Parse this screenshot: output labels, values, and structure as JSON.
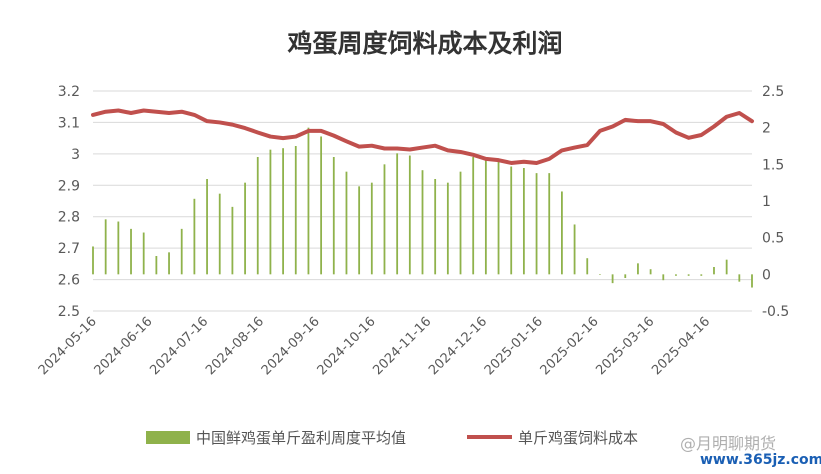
{
  "chart_data": {
    "type": "bar+line",
    "title": "鸡蛋周度饲料成本及利润",
    "left_axis": {
      "range": [
        2.5,
        3.2
      ],
      "ticks": [
        "2.5",
        "2.6",
        "2.7",
        "2.8",
        "2.9",
        "3",
        "3.1",
        "3.2"
      ]
    },
    "right_axis": {
      "range": [
        -0.5,
        2.5
      ],
      "ticks": [
        "-0.5",
        "0",
        "0.5",
        "1",
        "1.5",
        "2",
        "2.5"
      ]
    },
    "x_tick_labels": [
      "2024-05-16",
      "2024-06-16",
      "2024-07-16",
      "2024-08-16",
      "2024-09-16",
      "2024-10-16",
      "2024-11-16",
      "2024-12-16",
      "2025-01-16",
      "2025-02-16",
      "2025-03-16",
      "2025-04-16"
    ],
    "grid": "horizontal",
    "legend_placement": "bottom",
    "series": [
      {
        "name": "中国鲜鸡蛋单斤盈利周度平均值",
        "type": "bar",
        "axis": "right",
        "color": "#8FB24B",
        "values": [
          0.38,
          0.75,
          0.72,
          0.62,
          0.57,
          0.25,
          0.3,
          0.62,
          1.03,
          1.3,
          1.1,
          0.92,
          1.25,
          1.6,
          1.7,
          1.72,
          1.75,
          2.0,
          1.88,
          1.6,
          1.4,
          1.2,
          1.25,
          1.5,
          1.65,
          1.62,
          1.42,
          1.3,
          1.25,
          1.4,
          1.6,
          1.6,
          1.58,
          1.47,
          1.45,
          1.38,
          1.38,
          1.13,
          0.68,
          0.22,
          0.0,
          -0.12,
          -0.05,
          0.15,
          0.07,
          -0.08,
          -0.02,
          -0.02,
          -0.02,
          0.1,
          0.2,
          -0.1,
          -0.18
        ]
      },
      {
        "name": "单斤鸡蛋饲料成本",
        "type": "line",
        "axis": "left",
        "color": "#C0504D",
        "values": [
          3.124,
          3.134,
          3.138,
          3.13,
          3.138,
          3.134,
          3.13,
          3.134,
          3.124,
          3.104,
          3.1,
          3.093,
          3.082,
          3.068,
          3.055,
          3.05,
          3.055,
          3.073,
          3.073,
          3.058,
          3.04,
          3.023,
          3.026,
          3.017,
          3.017,
          3.014,
          3.02,
          3.026,
          3.011,
          3.006,
          2.997,
          2.984,
          2.98,
          2.971,
          2.975,
          2.971,
          2.984,
          3.011,
          3.02,
          3.028,
          3.073,
          3.087,
          3.108,
          3.104,
          3.104,
          3.095,
          3.068,
          3.051,
          3.06,
          3.087,
          3.118,
          3.13,
          3.104
        ]
      }
    ]
  },
  "watermark": {
    "handle": "@月明聊期货",
    "site": "www.365jz.com"
  }
}
